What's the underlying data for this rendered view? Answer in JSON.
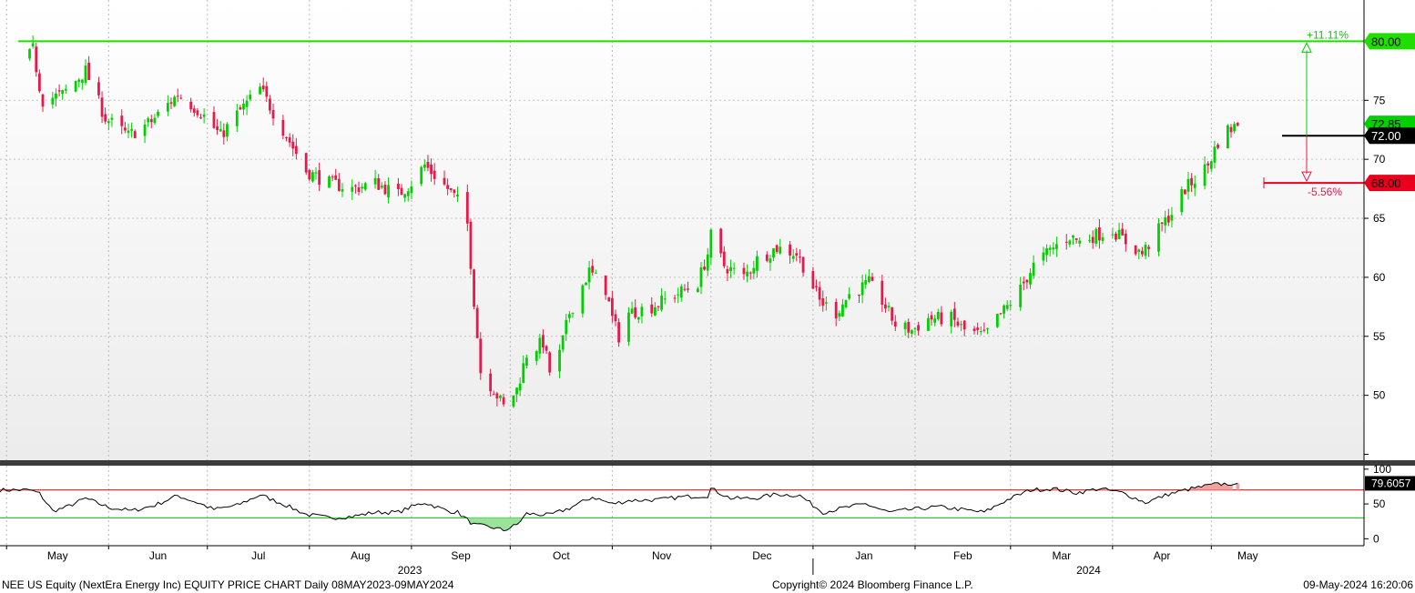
{
  "footer": {
    "left": "NEE US Equity (NextEra Energy Inc) EQUITY PRICE CHART  Daily 08MAY2023-09MAY2024",
    "center": "Copyright© 2024 Bloomberg Finance L.P.",
    "right": "09-May-2024 16:20:06"
  },
  "colors": {
    "up": "#00d000",
    "down": "#e8194a",
    "target": "#22dd00",
    "stop": "#e8001c",
    "entry": "#000000",
    "rsi_line": "#000000",
    "rsi_upper": "#cc0000",
    "rsi_lower": "#00c000"
  },
  "chart_data": [
    {
      "type": "candlestick",
      "title": "",
      "ylim": [
        44.5,
        83.5
      ],
      "yticks": [
        50,
        55,
        60,
        65,
        70,
        75
      ],
      "month_labels": [
        "May",
        "Jun",
        "Jul",
        "Aug",
        "Sep",
        "Oct",
        "Nov",
        "Dec",
        "Jan",
        "Feb",
        "Mar",
        "Apr",
        "May"
      ],
      "year_labels": [
        "2023",
        "2024"
      ],
      "close_path": [
        [
          "2023-05-08",
          78.8
        ],
        [
          "2023-05-09",
          79.3
        ],
        [
          "2023-05-11",
          76.2
        ],
        [
          "2023-05-12",
          75.0
        ],
        [
          "2023-05-18",
          75.5
        ],
        [
          "2023-05-25",
          77.5
        ],
        [
          "2023-05-31",
          73.5
        ],
        [
          "2023-06-07",
          72.0
        ],
        [
          "2023-06-14",
          73.2
        ],
        [
          "2023-06-22",
          75.5
        ],
        [
          "2023-06-29",
          74.0
        ],
        [
          "2023-07-05",
          72.0
        ],
        [
          "2023-07-10",
          73.8
        ],
        [
          "2023-07-17",
          76.0
        ],
        [
          "2023-07-25",
          72.0
        ],
        [
          "2023-07-31",
          69.0
        ],
        [
          "2023-08-07",
          68.0
        ],
        [
          "2023-08-14",
          67.5
        ],
        [
          "2023-08-21",
          68.0
        ],
        [
          "2023-08-28",
          67.0
        ],
        [
          "2023-09-01",
          68.0
        ],
        [
          "2023-09-05",
          69.5
        ],
        [
          "2023-09-12",
          67.5
        ],
        [
          "2023-09-15",
          66.5
        ],
        [
          "2023-09-18",
          64.5
        ],
        [
          "2023-09-20",
          58.0
        ],
        [
          "2023-09-22",
          52.0
        ],
        [
          "2023-09-26",
          50.5
        ],
        [
          "2023-09-29",
          49.0
        ],
        [
          "2023-10-03",
          50.5
        ],
        [
          "2023-10-06",
          53.5
        ],
        [
          "2023-10-11",
          54.5
        ],
        [
          "2023-10-13",
          52.0
        ],
        [
          "2023-10-16",
          53.5
        ],
        [
          "2023-10-19",
          57.0
        ],
        [
          "2023-10-25",
          60.5
        ],
        [
          "2023-10-30",
          59.0
        ],
        [
          "2023-11-01",
          56.5
        ],
        [
          "2023-11-03",
          55.0
        ],
        [
          "2023-11-06",
          57.0
        ],
        [
          "2023-11-13",
          57.5
        ],
        [
          "2023-11-20",
          58.5
        ],
        [
          "2023-11-27",
          59.5
        ],
        [
          "2023-11-30",
          62.0
        ],
        [
          "2023-12-01",
          63.5
        ],
        [
          "2023-12-05",
          61.0
        ],
        [
          "2023-12-11",
          60.0
        ],
        [
          "2023-12-15",
          61.5
        ],
        [
          "2023-12-21",
          62.5
        ],
        [
          "2023-12-27",
          62.0
        ],
        [
          "2023-12-29",
          61.0
        ],
        [
          "2024-01-03",
          58.0
        ],
        [
          "2024-01-08",
          57.0
        ],
        [
          "2024-01-12",
          58.5
        ],
        [
          "2024-01-18",
          59.5
        ],
        [
          "2024-01-22",
          58.0
        ],
        [
          "2024-01-26",
          56.0
        ],
        [
          "2024-01-31",
          55.5
        ],
        [
          "2024-02-05",
          56.5
        ],
        [
          "2024-02-12",
          56.5
        ],
        [
          "2024-02-16",
          55.5
        ],
        [
          "2024-02-22",
          55.0
        ],
        [
          "2024-02-26",
          56.5
        ],
        [
          "2024-02-29",
          57.5
        ],
        [
          "2024-03-04",
          59.0
        ],
        [
          "2024-03-08",
          61.0
        ],
        [
          "2024-03-14",
          62.5
        ],
        [
          "2024-03-19",
          63.5
        ],
        [
          "2024-03-22",
          63.0
        ],
        [
          "2024-03-26",
          63.5
        ],
        [
          "2024-04-01",
          64.0
        ],
        [
          "2024-04-05",
          63.0
        ],
        [
          "2024-04-10",
          62.0
        ],
        [
          "2024-04-15",
          64.0
        ],
        [
          "2024-04-19",
          65.5
        ],
        [
          "2024-04-23",
          67.5
        ],
        [
          "2024-04-25",
          68.0
        ],
        [
          "2024-04-30",
          69.5
        ],
        [
          "2024-05-03",
          71.5
        ],
        [
          "2024-05-06",
          72.5
        ],
        [
          "2024-05-09",
          72.85
        ]
      ],
      "levels": [
        {
          "label": "80.00",
          "value": 80.0,
          "pct": "+11.11%"
        },
        {
          "label": "72.00",
          "value": 72.0
        },
        {
          "label": "68.00",
          "value": 68.0,
          "pct": "-5.56%"
        }
      ],
      "last_price_label": "72.85"
    },
    {
      "type": "line",
      "title": "",
      "ylim": [
        -10,
        105
      ],
      "yticks": [
        0,
        50,
        100
      ],
      "upper_band": 70,
      "lower_band": 30,
      "last_value_label": "79.6057",
      "points": [
        [
          "2023-05-08",
          70
        ],
        [
          "2023-05-11",
          65
        ],
        [
          "2023-05-15",
          40
        ],
        [
          "2023-05-19",
          45
        ],
        [
          "2023-05-25",
          58
        ],
        [
          "2023-06-01",
          45
        ],
        [
          "2023-06-08",
          40
        ],
        [
          "2023-06-15",
          48
        ],
        [
          "2023-06-22",
          62
        ],
        [
          "2023-06-29",
          50
        ],
        [
          "2023-07-03",
          42
        ],
        [
          "2023-07-10",
          48
        ],
        [
          "2023-07-17",
          63
        ],
        [
          "2023-07-24",
          50
        ],
        [
          "2023-07-31",
          35
        ],
        [
          "2023-08-07",
          30
        ],
        [
          "2023-08-14",
          32
        ],
        [
          "2023-08-21",
          38
        ],
        [
          "2023-08-28",
          38
        ],
        [
          "2023-09-01",
          46
        ],
        [
          "2023-09-05",
          52
        ],
        [
          "2023-09-12",
          40
        ],
        [
          "2023-09-15",
          38
        ],
        [
          "2023-09-20",
          20
        ],
        [
          "2023-09-26",
          16
        ],
        [
          "2023-09-29",
          12
        ],
        [
          "2023-10-03",
          20
        ],
        [
          "2023-10-06",
          36
        ],
        [
          "2023-10-13",
          34
        ],
        [
          "2023-10-19",
          44
        ],
        [
          "2023-10-26",
          60
        ],
        [
          "2023-11-01",
          50
        ],
        [
          "2023-11-06",
          55
        ],
        [
          "2023-11-15",
          56
        ],
        [
          "2023-11-22",
          60
        ],
        [
          "2023-11-30",
          62
        ],
        [
          "2023-12-01",
          72
        ],
        [
          "2023-12-07",
          58
        ],
        [
          "2023-12-14",
          58
        ],
        [
          "2023-12-21",
          64
        ],
        [
          "2023-12-28",
          62
        ],
        [
          "2024-01-04",
          38
        ],
        [
          "2024-01-10",
          44
        ],
        [
          "2024-01-17",
          50
        ],
        [
          "2024-01-24",
          38
        ],
        [
          "2024-01-31",
          42
        ],
        [
          "2024-02-08",
          46
        ],
        [
          "2024-02-15",
          42
        ],
        [
          "2024-02-22",
          38
        ],
        [
          "2024-02-29",
          56
        ],
        [
          "2024-03-07",
          70
        ],
        [
          "2024-03-14",
          72
        ],
        [
          "2024-03-21",
          66
        ],
        [
          "2024-03-28",
          72
        ],
        [
          "2024-04-04",
          66
        ],
        [
          "2024-04-11",
          52
        ],
        [
          "2024-04-18",
          64
        ],
        [
          "2024-04-25",
          72
        ],
        [
          "2024-05-02",
          78
        ],
        [
          "2024-05-09",
          79.6057
        ]
      ]
    }
  ]
}
